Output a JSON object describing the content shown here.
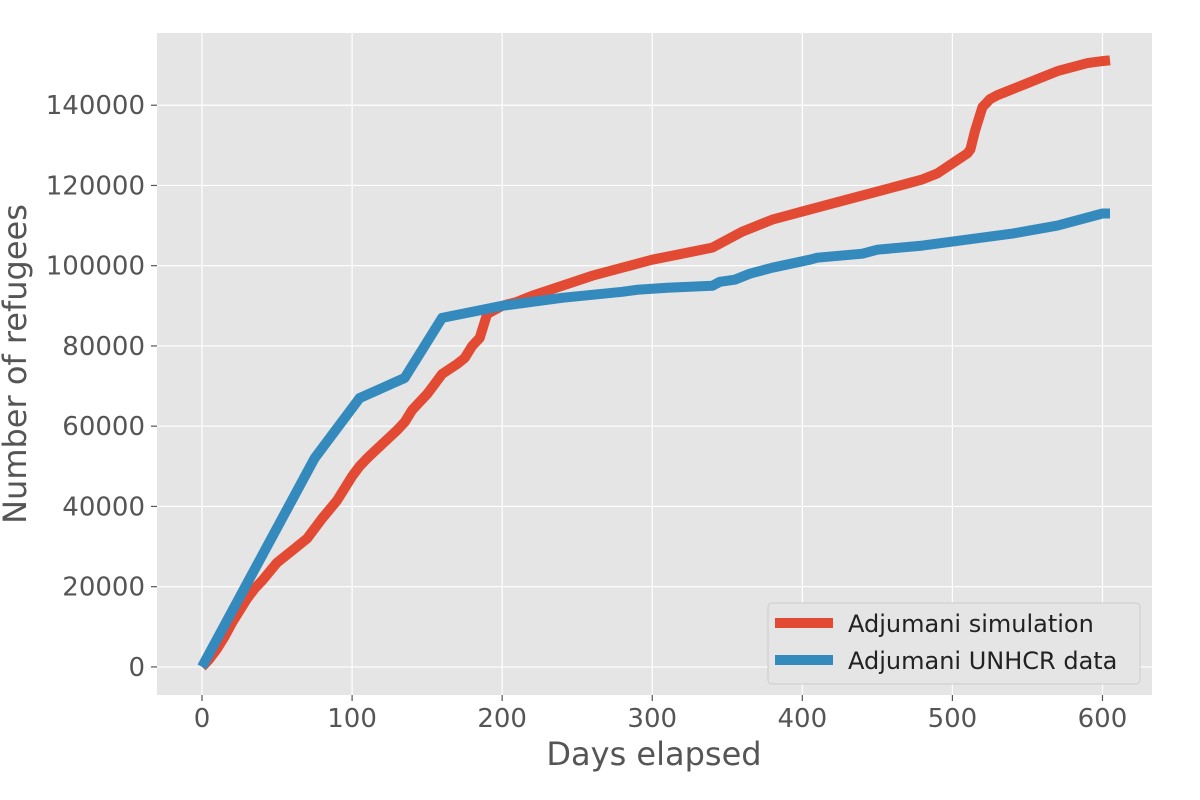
{
  "chart_data": {
    "type": "line",
    "title": "",
    "xlabel": "Days elapsed",
    "ylabel": "Number of refugees",
    "xlim": [
      -30,
      633
    ],
    "ylim": [
      -7000,
      158000
    ],
    "xticks": [
      0,
      100,
      200,
      300,
      400,
      500,
      600
    ],
    "yticks": [
      0,
      20000,
      40000,
      60000,
      80000,
      100000,
      120000,
      140000
    ],
    "grid": true,
    "legend_position": "lower-right",
    "background": "#e5e5e5",
    "series": [
      {
        "name": "Adjumani simulation",
        "color": "#e24a33",
        "x": [
          0,
          5,
          10,
          15,
          20,
          25,
          30,
          35,
          40,
          50,
          60,
          70,
          75,
          80,
          90,
          95,
          100,
          105,
          110,
          120,
          130,
          135,
          140,
          145,
          150,
          155,
          160,
          170,
          175,
          180,
          185,
          190,
          195,
          200,
          210,
          220,
          240,
          260,
          280,
          290,
          300,
          320,
          340,
          350,
          360,
          370,
          380,
          390,
          400,
          410,
          420,
          440,
          460,
          470,
          480,
          490,
          500,
          510,
          512,
          515,
          520,
          525,
          530,
          540,
          550,
          560,
          570,
          580,
          590,
          600,
          605
        ],
        "y": [
          0,
          2000,
          4500,
          7500,
          11000,
          14000,
          17000,
          19500,
          21500,
          26000,
          29000,
          32000,
          34500,
          37000,
          41500,
          44500,
          47500,
          50000,
          52000,
          55500,
          59000,
          61000,
          64000,
          66000,
          68000,
          70500,
          73000,
          75500,
          77000,
          80000,
          82000,
          88000,
          89000,
          90000,
          91000,
          92500,
          95000,
          97500,
          99500,
          100500,
          101500,
          103000,
          104500,
          106500,
          108500,
          110000,
          111500,
          112500,
          113500,
          114500,
          115500,
          117500,
          119500,
          120500,
          121500,
          123000,
          125500,
          128000,
          129000,
          133500,
          139500,
          141500,
          142500,
          144000,
          145500,
          147000,
          148500,
          149500,
          150500,
          151000,
          151200
        ]
      },
      {
        "name": "Adjumani UNHCR data",
        "color": "#348abd",
        "x": [
          0,
          75,
          105,
          135,
          160,
          200,
          240,
          280,
          290,
          310,
          340,
          345,
          355,
          365,
          380,
          405,
          410,
          440,
          450,
          480,
          500,
          540,
          570,
          600,
          605
        ],
        "y": [
          0,
          52000,
          67000,
          72000,
          87000,
          90000,
          92000,
          93500,
          94000,
          94500,
          95000,
          96000,
          96500,
          98000,
          99500,
          101500,
          102000,
          103000,
          104000,
          105000,
          106000,
          108000,
          110000,
          113000,
          113000
        ]
      }
    ]
  }
}
